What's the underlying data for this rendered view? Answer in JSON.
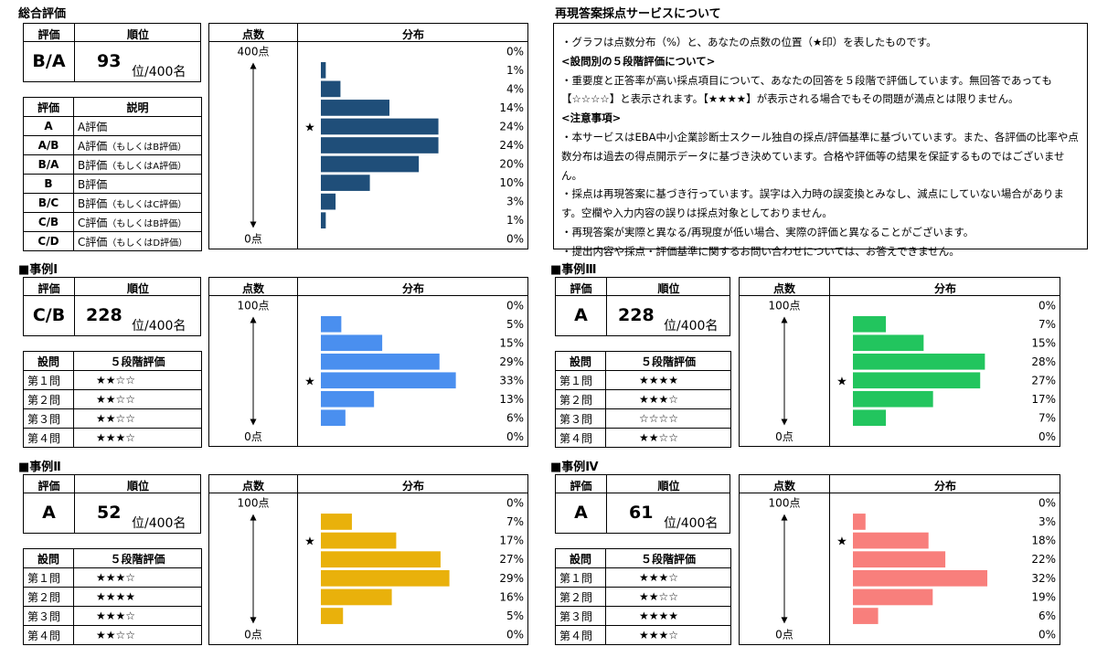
{
  "overall": {
    "title": "総合評価",
    "grade_header": "評価",
    "rank_header": "順位",
    "grade": "B/A",
    "rank": "93",
    "rank_suffix": "位/400名",
    "legend_headers": [
      "評価",
      "説明"
    ],
    "legend": [
      {
        "grade": "A",
        "desc": "A評価",
        "note": ""
      },
      {
        "grade": "A/B",
        "desc": "A評価",
        "note": "（もしくはB評価）"
      },
      {
        "grade": "B/A",
        "desc": "B評価",
        "note": "（もしくはA評価）"
      },
      {
        "grade": "B",
        "desc": "B評価",
        "note": ""
      },
      {
        "grade": "B/C",
        "desc": "B評価",
        "note": "（もしくはC評価）"
      },
      {
        "grade": "C/B",
        "desc": "C評価",
        "note": "（もしくはB評価）"
      },
      {
        "grade": "C/D",
        "desc": "C評価",
        "note": "（もしくはD評価）"
      }
    ]
  },
  "about": {
    "title": "再現答案採点サービスについて",
    "lines": [
      {
        "text": "・グラフは点数分布（%）と、あなたの点数の位置（★印）を表したものです。",
        "bold": false
      },
      {
        "text": "<設問別の５段階評価について>",
        "bold": true
      },
      {
        "text": "・重要度と正答率が高い採点項目について、あなたの回答を５段階で評価しています。無回答であっても【☆☆☆☆】と表示されます。【★★★★】が表示される場合でもその問題が満点とは限りません。",
        "bold": false
      },
      {
        "text": "<注意事項>",
        "bold": true
      },
      {
        "text": "・本サービスはEBA中小企業診断士スクール独自の採点/評価基準に基づいています。また、各評価の比率や点数分布は過去の得点開示データに基づき決めています。合格や評価等の結果を保証するものではございません。",
        "bold": false
      },
      {
        "text": "・採点は再現答案に基づき行っています。誤字は入力時の誤変換とみなし、減点にしていない場合があります。空欄や入力内容の誤りは採点対象としておりません。",
        "bold": false
      },
      {
        "text": "・再現答案が実際と異なる/再現度が低い場合、実際の評価と異なることがございます。",
        "bold": false
      },
      {
        "text": "・提出内容や採点・評価基準に関するお問い合わせについては、お答えできません。",
        "bold": false
      }
    ]
  },
  "chart_headers": {
    "score": "点数",
    "dist": "分布"
  },
  "question_headers": {
    "q": "設問",
    "eval": "５段階評価"
  },
  "cases": [
    {
      "title": "■事例Ⅰ",
      "grade": "C/B",
      "rank": "228",
      "rank_suffix": "位/400名",
      "questions": [
        {
          "q": "第１問",
          "stars": "★★☆☆"
        },
        {
          "q": "第２問",
          "stars": "★★☆☆"
        },
        {
          "q": "第３問",
          "stars": "★★☆☆"
        },
        {
          "q": "第４問",
          "stars": "★★★☆"
        }
      ]
    },
    {
      "title": "■事例Ⅱ",
      "grade": "A",
      "rank": "52",
      "rank_suffix": "位/400名",
      "questions": [
        {
          "q": "第１問",
          "stars": "★★★☆"
        },
        {
          "q": "第２問",
          "stars": "★★★★"
        },
        {
          "q": "第３問",
          "stars": "★★★☆"
        },
        {
          "q": "第４問",
          "stars": "★★☆☆"
        }
      ]
    },
    {
      "title": "■事例Ⅲ",
      "grade": "A",
      "rank": "228",
      "rank_suffix": "位/400名",
      "questions": [
        {
          "q": "第１問",
          "stars": "★★★★"
        },
        {
          "q": "第２問",
          "stars": "★★★☆"
        },
        {
          "q": "第３問",
          "stars": "☆☆☆☆"
        },
        {
          "q": "第４問",
          "stars": "★★☆☆"
        }
      ]
    },
    {
      "title": "■事例Ⅳ",
      "grade": "A",
      "rank": "61",
      "rank_suffix": "位/400名",
      "questions": [
        {
          "q": "第１問",
          "stars": "★★★☆"
        },
        {
          "q": "第２問",
          "stars": "★★☆☆"
        },
        {
          "q": "第３問",
          "stars": "★★★★"
        },
        {
          "q": "第４問",
          "stars": "★★★☆"
        }
      ]
    }
  ],
  "chart_data": [
    {
      "id": "overall",
      "type": "bar",
      "orientation": "horizontal",
      "top_label": "400点",
      "bottom_label": "0点",
      "values": [
        0,
        1,
        4,
        14,
        24,
        24,
        20,
        10,
        3,
        1,
        0
      ],
      "labels": [
        "0%",
        "1%",
        "4%",
        "14%",
        "24%",
        "24%",
        "20%",
        "10%",
        "3%",
        "1%",
        "0%"
      ],
      "marker_index": 4,
      "color": "#1F4E79",
      "xmax": 28
    },
    {
      "id": "case1",
      "type": "bar",
      "orientation": "horizontal",
      "top_label": "100点",
      "bottom_label": "0点",
      "values": [
        0,
        5,
        15,
        29,
        33,
        13,
        6,
        0
      ],
      "labels": [
        "0%",
        "5%",
        "15%",
        "29%",
        "33%",
        "13%",
        "6%",
        "0%"
      ],
      "marker_index": 4,
      "color": "#4A8FEF",
      "xmax": 38
    },
    {
      "id": "case2",
      "type": "bar",
      "orientation": "horizontal",
      "top_label": "100点",
      "bottom_label": "0点",
      "values": [
        0,
        7,
        17,
        27,
        29,
        16,
        5,
        0
      ],
      "labels": [
        "0%",
        "7%",
        "17%",
        "27%",
        "29%",
        "16%",
        "5%",
        "0%"
      ],
      "marker_index": 2,
      "color": "#E9B10B",
      "xmax": 33
    },
    {
      "id": "case3",
      "type": "bar",
      "orientation": "horizontal",
      "top_label": "100点",
      "bottom_label": "0点",
      "values": [
        0,
        7,
        15,
        28,
        27,
        17,
        7,
        0
      ],
      "labels": [
        "0%",
        "7%",
        "15%",
        "28%",
        "27%",
        "17%",
        "7%",
        "0%"
      ],
      "marker_index": 4,
      "color": "#22C55E",
      "xmax": 32
    },
    {
      "id": "case4",
      "type": "bar",
      "orientation": "horizontal",
      "top_label": "100点",
      "bottom_label": "0点",
      "values": [
        0,
        3,
        18,
        22,
        32,
        19,
        6,
        0
      ],
      "labels": [
        "0%",
        "3%",
        "18%",
        "22%",
        "32%",
        "19%",
        "6%",
        "0%"
      ],
      "marker_index": 2,
      "color": "#F87F7C",
      "xmax": 37
    }
  ]
}
